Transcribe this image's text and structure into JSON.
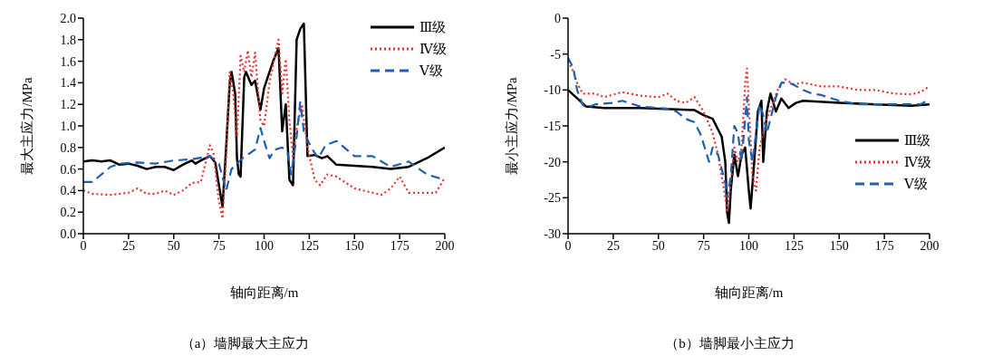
{
  "chart_data": [
    {
      "type": "line",
      "title": "（a）墙脚最大主应力",
      "xlabel": "轴向距离/m",
      "ylabel": "最大主应力/MPa",
      "xlim": [
        0,
        200
      ],
      "xticks": [
        0,
        25,
        50,
        75,
        100,
        125,
        150,
        175,
        200
      ],
      "ylim": [
        0,
        2
      ],
      "yticks": [
        {
          "value": 0,
          "label": "0.0"
        },
        {
          "value": 0.2,
          "label": "0.2"
        },
        {
          "value": 0.4,
          "label": "0.4"
        },
        {
          "value": 0.6,
          "label": "0.6"
        },
        {
          "value": 0.8,
          "label": "0.8"
        },
        {
          "value": 1,
          "label": "1.0"
        },
        {
          "value": 1.2,
          "label": "1.2"
        },
        {
          "value": 1.4,
          "label": "1.4"
        },
        {
          "value": 1.6,
          "label": "1.6"
        },
        {
          "value": 1.8,
          "label": "1.8"
        },
        {
          "value": 2,
          "label": "2.0"
        }
      ],
      "grid": false,
      "legend": "top right",
      "marker": "none",
      "series": [
        {
          "name": "Ⅲ级",
          "color": "#000000",
          "line_style": "solid",
          "x": [
            0,
            5,
            10,
            15,
            20,
            25,
            30,
            35,
            40,
            45,
            50,
            55,
            60,
            62,
            65,
            70,
            73,
            76,
            77,
            79,
            81,
            82,
            84,
            85,
            86,
            87,
            89,
            90,
            93,
            95,
            98,
            100,
            102,
            105,
            108,
            110,
            112,
            114,
            116,
            118,
            120,
            122,
            124,
            128,
            132,
            135,
            140,
            150,
            160,
            170,
            180,
            190,
            200
          ],
          "values": [
            0.67,
            0.68,
            0.67,
            0.68,
            0.64,
            0.65,
            0.63,
            0.6,
            0.62,
            0.62,
            0.59,
            0.64,
            0.68,
            0.65,
            0.68,
            0.72,
            0.66,
            0.35,
            0.25,
            0.8,
            1.4,
            1.5,
            1.3,
            0.7,
            0.55,
            0.53,
            1.45,
            1.5,
            1.38,
            1.42,
            1.15,
            1.35,
            1.45,
            1.6,
            1.72,
            0.95,
            1.2,
            0.5,
            0.45,
            1.8,
            1.9,
            1.95,
            0.72,
            0.73,
            0.7,
            0.72,
            0.64,
            0.63,
            0.62,
            0.6,
            0.62,
            0.7,
            0.8
          ]
        },
        {
          "name": "Ⅳ级",
          "color": "#e8312f",
          "line_style": "dotted",
          "x": [
            0,
            5,
            15,
            25,
            30,
            35,
            40,
            45,
            50,
            55,
            60,
            65,
            70,
            72,
            75,
            77,
            79,
            81,
            83,
            85,
            87,
            89,
            91,
            93,
            95,
            98,
            100,
            103,
            106,
            108,
            110,
            112,
            114,
            116,
            118,
            121,
            124,
            128,
            131,
            135,
            140,
            150,
            160,
            165,
            170,
            175,
            180,
            190,
            195,
            200
          ],
          "values": [
            0.4,
            0.37,
            0.36,
            0.38,
            0.42,
            0.37,
            0.37,
            0.4,
            0.36,
            0.4,
            0.47,
            0.48,
            0.82,
            0.75,
            0.3,
            0.14,
            0.7,
            1.5,
            1.3,
            0.9,
            1.65,
            1.5,
            1.7,
            1.45,
            1.68,
            1.05,
            1.0,
            1.4,
            1.65,
            1.8,
            1.3,
            1.62,
            1.05,
            0.7,
            0.98,
            1.2,
            0.8,
            0.5,
            0.45,
            0.55,
            0.53,
            0.42,
            0.38,
            0.36,
            0.42,
            0.53,
            0.38,
            0.38,
            0.38,
            0.52
          ]
        },
        {
          "name": "Ⅴ级",
          "color": "#1f5fb0",
          "line_style": "dashed",
          "x": [
            0,
            5,
            10,
            15,
            20,
            30,
            40,
            50,
            60,
            70,
            75,
            79,
            82,
            88,
            95,
            98,
            100,
            103,
            106,
            110,
            113,
            115,
            118,
            120,
            122,
            126,
            130,
            134,
            140,
            150,
            160,
            170,
            180,
            190,
            200
          ],
          "values": [
            0.48,
            0.48,
            0.55,
            0.62,
            0.65,
            0.66,
            0.65,
            0.68,
            0.69,
            0.72,
            0.65,
            0.4,
            0.6,
            0.7,
            0.78,
            0.98,
            0.86,
            0.7,
            0.78,
            0.8,
            0.75,
            0.55,
            0.9,
            1.22,
            0.95,
            0.8,
            0.7,
            0.82,
            0.86,
            0.72,
            0.72,
            0.62,
            0.67,
            0.55,
            0.5
          ]
        }
      ]
    },
    {
      "type": "line",
      "title": "（b）墙脚最小主应力",
      "xlabel": "轴向距离/m",
      "ylabel": "最小主应力/MPa",
      "xlim": [
        0,
        200
      ],
      "xticks": [
        0,
        25,
        50,
        75,
        100,
        125,
        150,
        175,
        200
      ],
      "ylim": [
        -30,
        0
      ],
      "yticks": [
        -30,
        -25,
        -20,
        -15,
        -10,
        -5,
        0
      ],
      "grid": false,
      "legend": "right",
      "marker": "none",
      "series": [
        {
          "name": "Ⅲ级",
          "color": "#000000",
          "line_style": "solid",
          "x": [
            0,
            10,
            20,
            40,
            60,
            70,
            75,
            80,
            83,
            85,
            87,
            88,
            89,
            90,
            92,
            94,
            96,
            98,
            100,
            101,
            103,
            105,
            107,
            108,
            110,
            112,
            115,
            118,
            122,
            126,
            130,
            150,
            170,
            190,
            200
          ],
          "values": [
            -10,
            -12.3,
            -12.5,
            -12.5,
            -12.7,
            -12.8,
            -13.5,
            -14,
            -15.5,
            -16.5,
            -20,
            -27,
            -28.5,
            -24,
            -19,
            -22,
            -19,
            -18,
            -24,
            -26.5,
            -20,
            -13,
            -11.5,
            -20,
            -13,
            -10.5,
            -13,
            -11.2,
            -12.5,
            -11.8,
            -11.5,
            -11.8,
            -12,
            -12.2,
            -12
          ]
        },
        {
          "name": "Ⅳ级",
          "color": "#e8312f",
          "line_style": "dotted",
          "x": [
            0,
            3,
            5,
            8,
            15,
            20,
            30,
            40,
            50,
            55,
            60,
            65,
            70,
            75,
            80,
            83,
            85,
            87,
            88,
            90,
            92,
            94,
            96,
            98,
            99,
            100,
            102,
            104,
            106,
            108,
            110,
            113,
            116,
            120,
            125,
            130,
            140,
            150,
            160,
            170,
            180,
            190,
            195,
            200
          ],
          "values": [
            -6,
            -7.5,
            -9,
            -10.5,
            -10.5,
            -11,
            -10.3,
            -10.8,
            -11,
            -10.5,
            -11.5,
            -11.8,
            -11,
            -13,
            -16,
            -19,
            -22,
            -25,
            -27,
            -23,
            -18,
            -20,
            -18,
            -9,
            -7,
            -12,
            -22,
            -24,
            -18,
            -16,
            -14,
            -12,
            -10,
            -8.5,
            -9.2,
            -9,
            -9.5,
            -9.5,
            -10,
            -10,
            -10.5,
            -10.6,
            -10.3,
            -9.5
          ]
        },
        {
          "name": "Ⅴ级",
          "color": "#1f5fb0",
          "line_style": "dashed",
          "x": [
            0,
            3,
            5,
            8,
            10,
            15,
            25,
            30,
            40,
            55,
            60,
            65,
            70,
            73,
            75,
            78,
            80,
            83,
            85,
            87,
            88,
            90,
            92,
            94,
            96,
            98,
            99,
            100,
            102,
            104,
            106,
            108,
            110,
            112,
            115,
            118,
            122,
            125,
            130,
            135,
            140,
            150,
            160,
            170,
            180,
            190,
            195,
            200
          ],
          "values": [
            -5.5,
            -7,
            -10,
            -12,
            -12.5,
            -12,
            -11.8,
            -11.5,
            -12.3,
            -12.6,
            -13,
            -14,
            -14.5,
            -16,
            -17.5,
            -20,
            -18,
            -19,
            -21,
            -23,
            -25,
            -22,
            -15,
            -16,
            -20,
            -14,
            -11,
            -17,
            -20,
            -16,
            -12,
            -13.5,
            -16,
            -14,
            -11,
            -9,
            -9,
            -9.3,
            -10,
            -10.5,
            -10.7,
            -11.5,
            -12,
            -12,
            -12,
            -12,
            -12,
            -11.3
          ]
        }
      ]
    }
  ]
}
